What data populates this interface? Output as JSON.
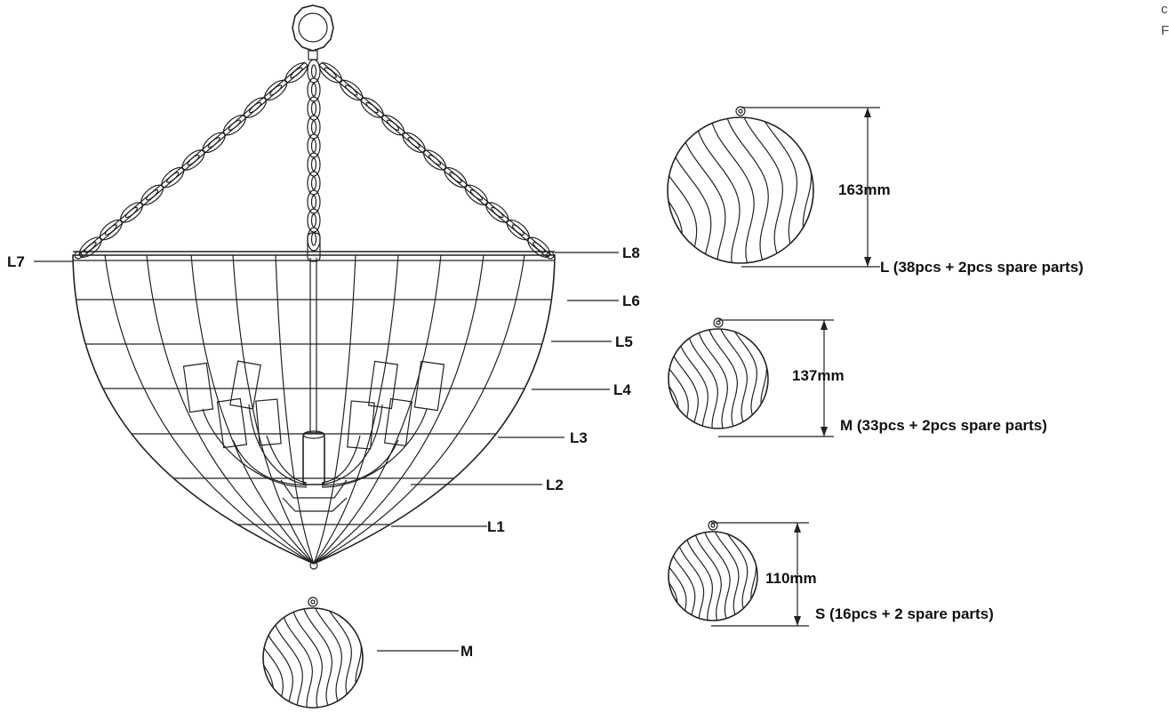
{
  "edge_text": {
    "line1": "c",
    "line2": "F"
  },
  "labels": {
    "L1": "L1",
    "L2": "L2",
    "L3": "L3",
    "L4": "L4",
    "L5": "L5",
    "L6": "L6",
    "L7": "L7",
    "L8": "L8",
    "M": "M"
  },
  "ornaments": {
    "large": {
      "size": "163mm",
      "qty": "L (38pcs + 2pcs spare parts)"
    },
    "medium": {
      "size": "137mm",
      "qty": "M (33pcs + 2pcs spare parts)"
    },
    "small": {
      "size": "110mm",
      "qty": "S (16pcs + 2 spare parts)"
    }
  }
}
